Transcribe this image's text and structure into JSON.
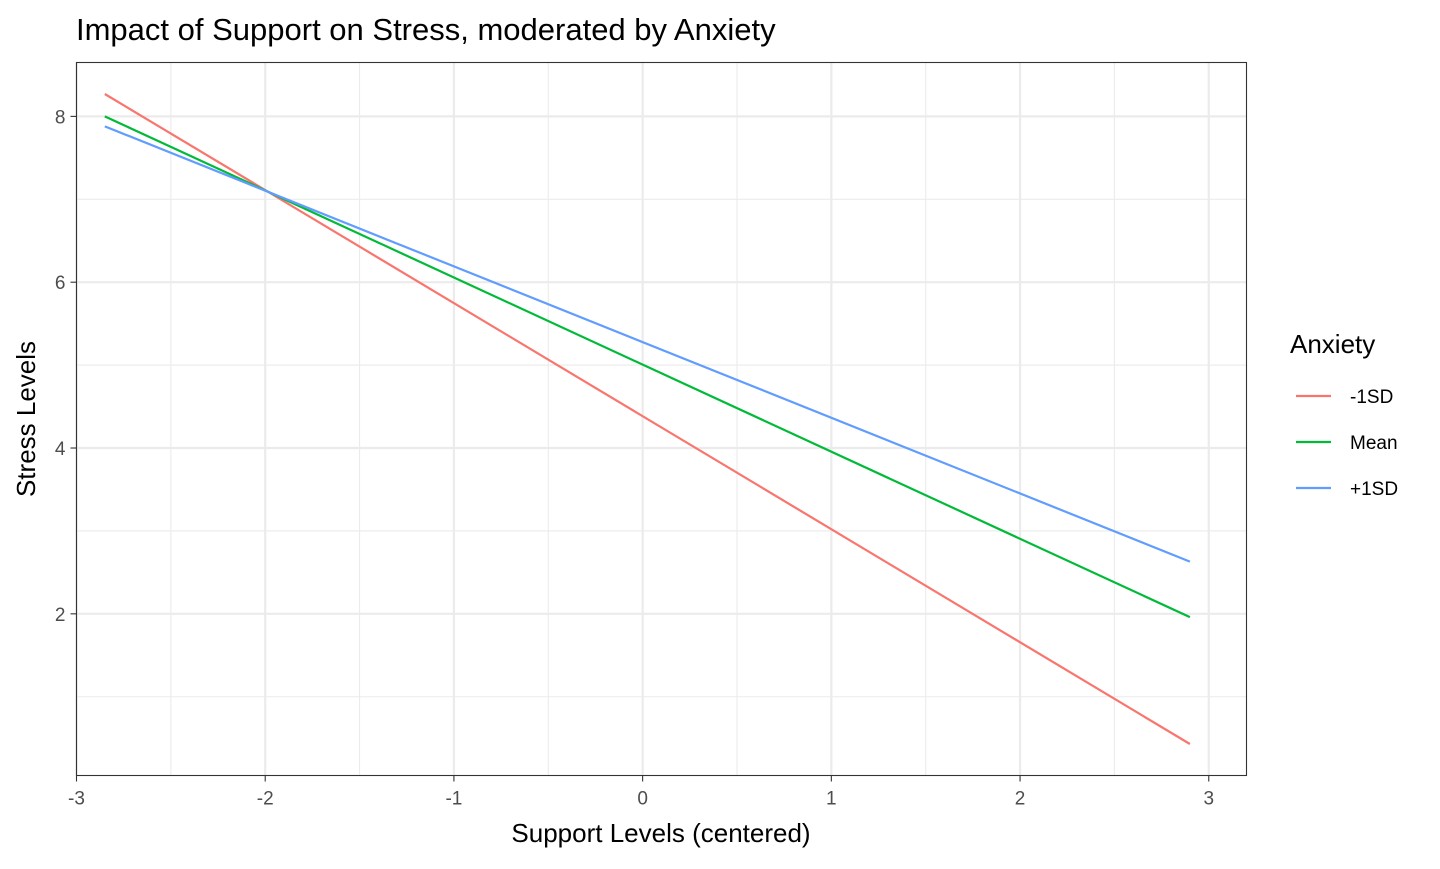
{
  "chart_data": {
    "type": "line",
    "title": "Impact of Support on Stress, moderated by Anxiety",
    "xlabel": "Support Levels (centered)",
    "ylabel": "Stress Levels",
    "xlim": [
      -3.0,
      3.2
    ],
    "ylim": [
      0.05,
      8.65
    ],
    "x_ticks": [
      -3,
      -2,
      -1,
      0,
      1,
      2,
      3
    ],
    "x_tick_labels": [
      "-3",
      "-2",
      "-1",
      "0",
      "1",
      "2",
      "3"
    ],
    "y_ticks": [
      2,
      4,
      6,
      8
    ],
    "y_tick_labels": [
      "2",
      "4",
      "6",
      "8"
    ],
    "x_minor_ticks": [
      -2.5,
      -1.5,
      -0.5,
      0.5,
      1.5,
      2.5
    ],
    "y_minor_ticks": [
      1,
      3,
      5,
      7
    ],
    "grid": true,
    "legend": {
      "title": "Anxiety",
      "position": "right"
    },
    "series": [
      {
        "name": "-1SD",
        "color": "#F8766D",
        "x": [
          -2.85,
          2.9
        ],
        "y": [
          8.27,
          0.43
        ]
      },
      {
        "name": "Mean",
        "color": "#00BA38",
        "x": [
          -2.85,
          2.9
        ],
        "y": [
          8.0,
          1.96
        ]
      },
      {
        "name": "+1SD",
        "color": "#619CFF",
        "x": [
          -2.85,
          2.9
        ],
        "y": [
          7.88,
          2.63
        ]
      }
    ]
  }
}
